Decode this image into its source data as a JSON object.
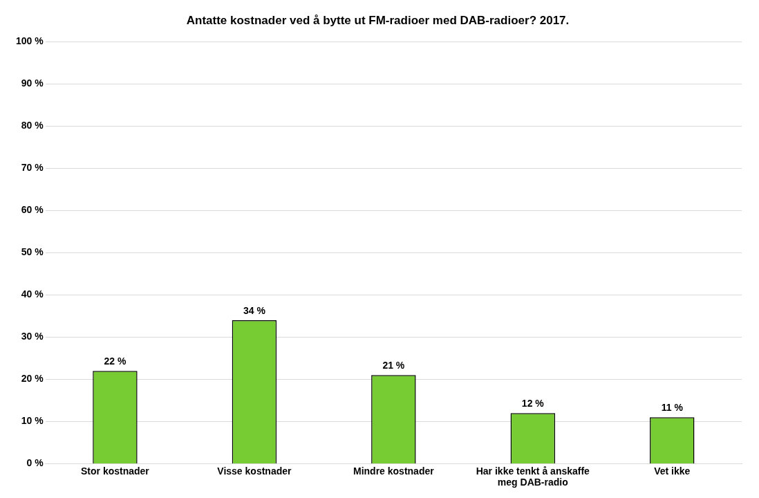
{
  "chart_data": {
    "type": "bar",
    "title": "Antatte kostnader ved å bytte ut FM-radioer med DAB-radioer? 2017.",
    "categories": [
      "Stor kostnader",
      "Visse kostnader",
      "Mindre kostnader",
      "Har ikke tenkt å anskaffe meg DAB-radio",
      "Vet ikke"
    ],
    "values": [
      22,
      34,
      21,
      12,
      11
    ],
    "value_labels": [
      "22 %",
      "34 %",
      "21 %",
      "12 %",
      "11 %"
    ],
    "color": "#77cc33",
    "ylim": [
      0,
      100
    ],
    "yticks": [
      {
        "value": 0,
        "label": "0 %"
      },
      {
        "value": 10,
        "label": "10 %"
      },
      {
        "value": 20,
        "label": "20 %"
      },
      {
        "value": 30,
        "label": "30 %"
      },
      {
        "value": 40,
        "label": "40 %"
      },
      {
        "value": 50,
        "label": "50 %"
      },
      {
        "value": 60,
        "label": "60 %"
      },
      {
        "value": 70,
        "label": "70 %"
      },
      {
        "value": 80,
        "label": "80 %"
      },
      {
        "value": 90,
        "label": "90 %"
      },
      {
        "value": 100,
        "label": "100 %"
      }
    ],
    "grid": "y",
    "legend": false
  }
}
